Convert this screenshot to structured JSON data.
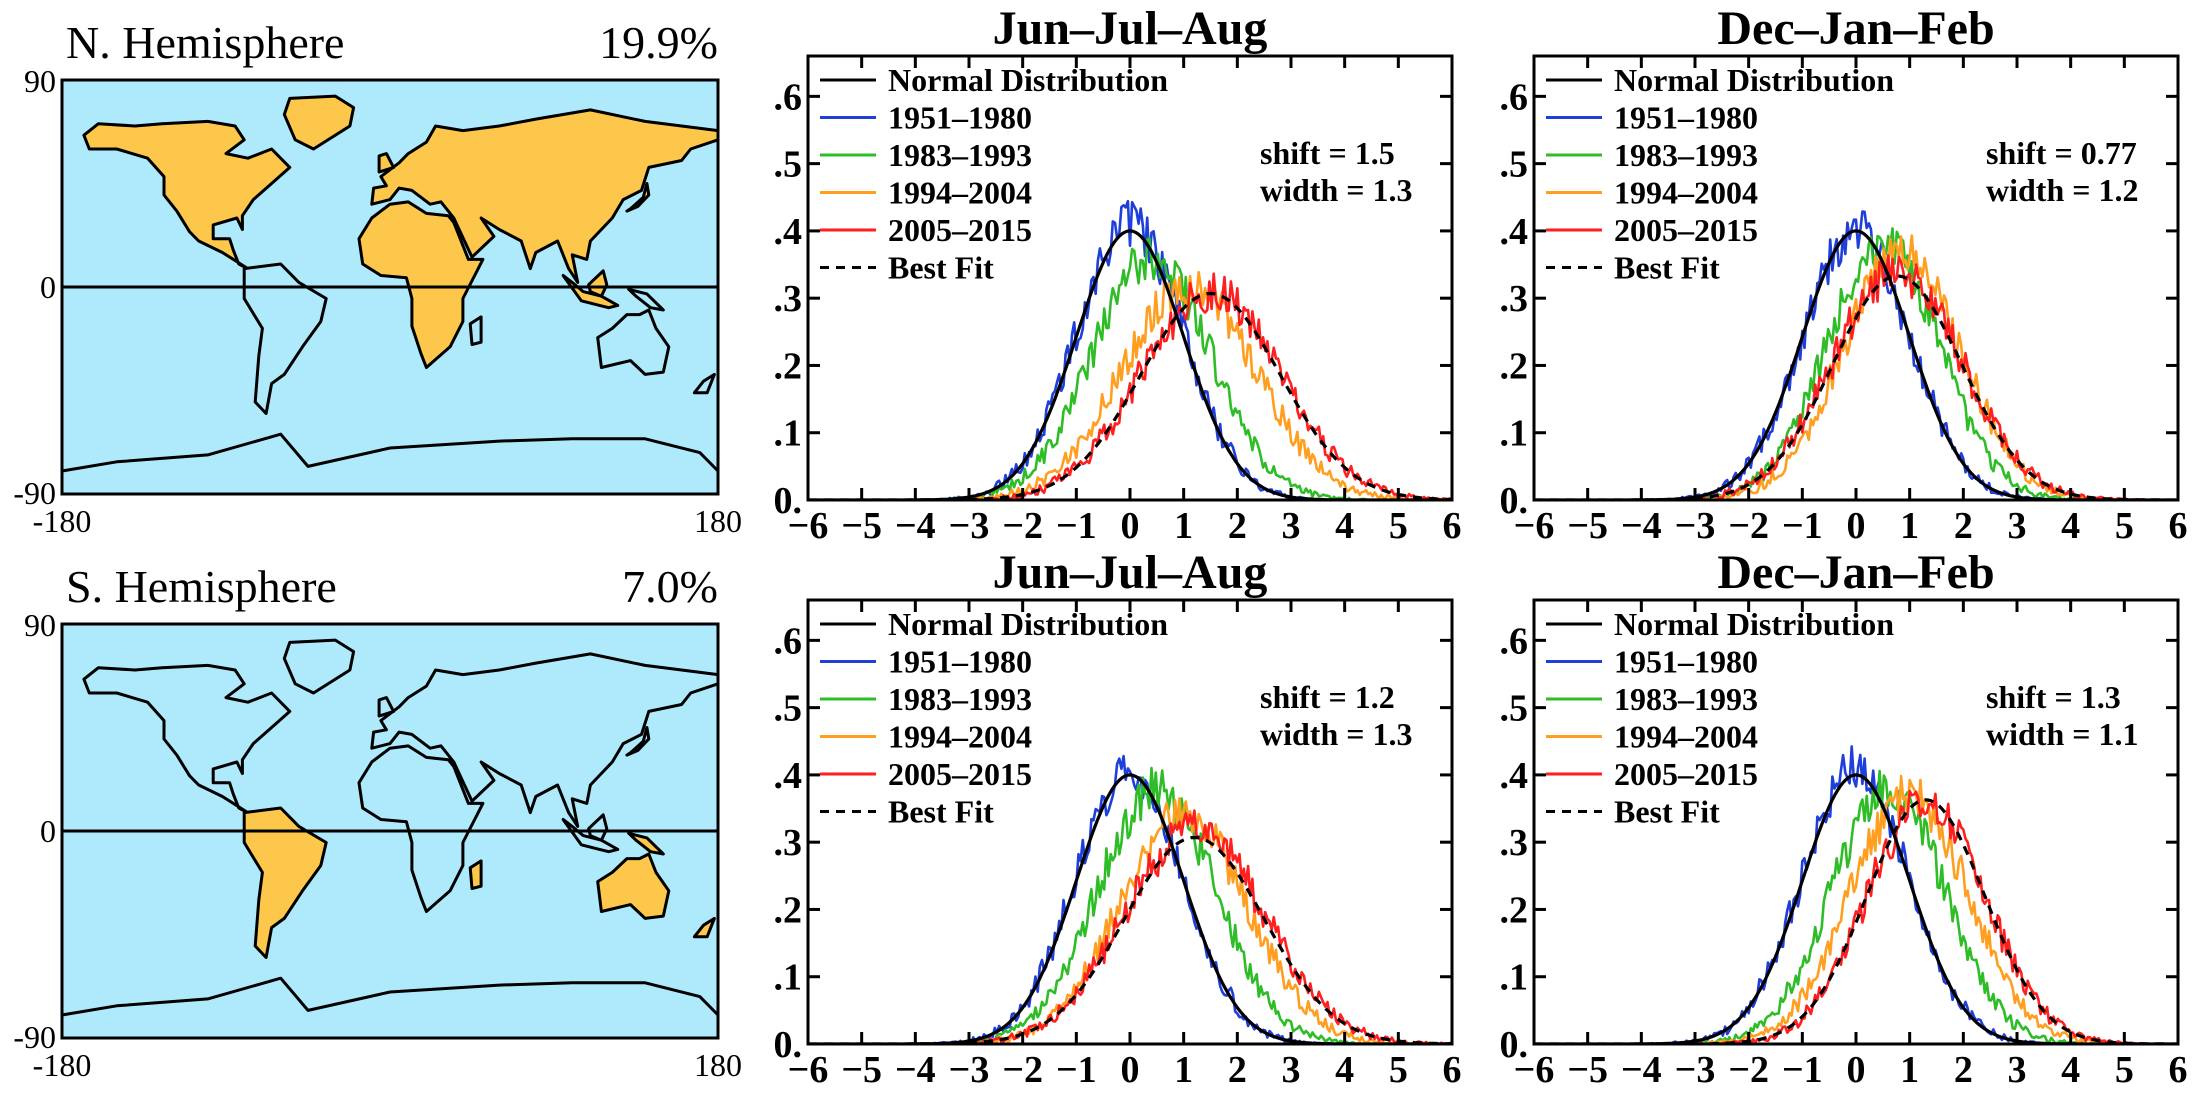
{
  "colors": {
    "ocean": "#aeeafb",
    "land_highlight": "#fcc74b",
    "land_other": "#aeeafb",
    "coast": "#000000",
    "normal": "#000000",
    "p1951": "#1f3fdb",
    "p1983": "#2ebd27",
    "p1994": "#ff9e1f",
    "p2005": "#ff1f1f",
    "bestfit": "#000000"
  },
  "maps": [
    {
      "title": "N. Hemisphere",
      "percent": "19.9%",
      "highlight": "north",
      "lat_ticks": [
        "90",
        "0",
        "-90"
      ],
      "lon_ticks": [
        "-180",
        "180"
      ]
    },
    {
      "title": "S. Hemisphere",
      "percent": "7.0%",
      "highlight": "south",
      "lat_ticks": [
        "90",
        "0",
        "-90"
      ],
      "lon_ticks": [
        "-180",
        "180"
      ]
    }
  ],
  "legend_labels": [
    "Normal Distribution",
    "1951–1980",
    "1983–1993",
    "1994–2004",
    "2005–2015",
    "Best Fit"
  ],
  "chart_data": [
    {
      "type": "line",
      "title": "Jun–Jul–Aug",
      "hemisphere": "N. Hemisphere",
      "xlim": [
        -6,
        6
      ],
      "ylim": [
        0,
        0.66
      ],
      "x_ticks": [
        "−6",
        "−5",
        "−4",
        "−3",
        "−2",
        "−1",
        "0",
        "1",
        "2",
        "3",
        "4",
        "5",
        "6"
      ],
      "y_ticks": [
        "0.",
        ".1",
        ".2",
        ".3",
        ".4",
        ".5",
        ".6"
      ],
      "shift_text": "shift = 1.5",
      "width_text": "width = 1.3",
      "series": [
        {
          "name": "Normal Distribution",
          "mean": 0.0,
          "sd": 1.0,
          "peak": 0.4,
          "style": "solid",
          "color": "normal"
        },
        {
          "name": "1951–1980",
          "mean": 0.0,
          "sd": 1.0,
          "peak": 0.41,
          "style": "noisy",
          "color": "p1951"
        },
        {
          "name": "1983–1993",
          "mean": 0.4,
          "sd": 1.1,
          "peak": 0.36,
          "style": "noisy",
          "color": "p1983"
        },
        {
          "name": "1994–2004",
          "mean": 1.1,
          "sd": 1.25,
          "peak": 0.32,
          "style": "noisy",
          "color": "p1994"
        },
        {
          "name": "2005–2015",
          "mean": 1.5,
          "sd": 1.3,
          "peak": 0.31,
          "style": "noisy",
          "color": "p2005"
        },
        {
          "name": "Best Fit",
          "mean": 1.5,
          "sd": 1.3,
          "peak": 0.307,
          "style": "dashed",
          "color": "bestfit"
        }
      ]
    },
    {
      "type": "line",
      "title": "Dec–Jan–Feb",
      "hemisphere": "N. Hemisphere",
      "xlim": [
        -6,
        6
      ],
      "ylim": [
        0,
        0.66
      ],
      "x_ticks": [
        "−6",
        "−5",
        "−4",
        "−3",
        "−2",
        "−1",
        "0",
        "1",
        "2",
        "3",
        "4",
        "5",
        "6"
      ],
      "y_ticks": [
        "0.",
        ".1",
        ".2",
        ".3",
        ".4",
        ".5",
        ".6"
      ],
      "shift_text": "shift = 0.77",
      "width_text": "width = 1.2",
      "series": [
        {
          "name": "Normal Distribution",
          "mean": 0.0,
          "sd": 1.0,
          "peak": 0.4,
          "style": "solid",
          "color": "normal"
        },
        {
          "name": "1951–1980",
          "mean": 0.0,
          "sd": 1.0,
          "peak": 0.4,
          "style": "noisy",
          "color": "p1951"
        },
        {
          "name": "1983–1993",
          "mean": 0.5,
          "sd": 1.05,
          "peak": 0.38,
          "style": "noisy",
          "color": "p1983"
        },
        {
          "name": "1994–2004",
          "mean": 0.85,
          "sd": 1.1,
          "peak": 0.37,
          "style": "noisy",
          "color": "p1994"
        },
        {
          "name": "2005–2015",
          "mean": 0.77,
          "sd": 1.2,
          "peak": 0.34,
          "style": "noisy",
          "color": "p2005"
        },
        {
          "name": "Best Fit",
          "mean": 0.77,
          "sd": 1.2,
          "peak": 0.333,
          "style": "dashed",
          "color": "bestfit"
        }
      ]
    },
    {
      "type": "line",
      "title": "Jun–Jul–Aug",
      "hemisphere": "S. Hemisphere",
      "xlim": [
        -6,
        6
      ],
      "ylim": [
        0,
        0.66
      ],
      "x_ticks": [
        "−6",
        "−5",
        "−4",
        "−3",
        "−2",
        "−1",
        "0",
        "1",
        "2",
        "3",
        "4",
        "5",
        "6"
      ],
      "y_ticks": [
        "0.",
        ".1",
        ".2",
        ".3",
        ".4",
        ".5",
        ".6"
      ],
      "shift_text": "shift = 1.2",
      "width_text": "width = 1.3",
      "series": [
        {
          "name": "Normal Distribution",
          "mean": 0.0,
          "sd": 1.0,
          "peak": 0.4,
          "style": "solid",
          "color": "normal"
        },
        {
          "name": "1951–1980",
          "mean": 0.0,
          "sd": 1.0,
          "peak": 0.41,
          "style": "noisy",
          "color": "p1951"
        },
        {
          "name": "1983–1993",
          "mean": 0.5,
          "sd": 1.1,
          "peak": 0.38,
          "style": "noisy",
          "color": "p1983"
        },
        {
          "name": "1994–2004",
          "mean": 1.0,
          "sd": 1.2,
          "peak": 0.34,
          "style": "noisy",
          "color": "p1994"
        },
        {
          "name": "2005–2015",
          "mean": 1.2,
          "sd": 1.3,
          "peak": 0.32,
          "style": "noisy",
          "color": "p2005"
        },
        {
          "name": "Best Fit",
          "mean": 1.2,
          "sd": 1.3,
          "peak": 0.307,
          "style": "dashed",
          "color": "bestfit"
        }
      ]
    },
    {
      "type": "line",
      "title": "Dec–Jan–Feb",
      "hemisphere": "S. Hemisphere",
      "xlim": [
        -6,
        6
      ],
      "ylim": [
        0,
        0.66
      ],
      "x_ticks": [
        "−6",
        "−5",
        "−4",
        "−3",
        "−2",
        "−1",
        "0",
        "1",
        "2",
        "3",
        "4",
        "5",
        "6"
      ],
      "y_ticks": [
        "0.",
        ".1",
        ".2",
        ".3",
        ".4",
        ".5",
        ".6"
      ],
      "shift_text": "shift = 1.3",
      "width_text": "width = 1.1",
      "series": [
        {
          "name": "Normal Distribution",
          "mean": 0.0,
          "sd": 1.0,
          "peak": 0.4,
          "style": "solid",
          "color": "normal"
        },
        {
          "name": "1951–1980",
          "mean": 0.0,
          "sd": 1.0,
          "peak": 0.41,
          "style": "noisy",
          "color": "p1951"
        },
        {
          "name": "1983–1993",
          "mean": 0.6,
          "sd": 1.05,
          "peak": 0.38,
          "style": "noisy",
          "color": "p1983"
        },
        {
          "name": "1994–2004",
          "mean": 1.0,
          "sd": 1.1,
          "peak": 0.37,
          "style": "noisy",
          "color": "p1994"
        },
        {
          "name": "2005–2015",
          "mean": 1.3,
          "sd": 1.1,
          "peak": 0.36,
          "style": "noisy",
          "color": "p2005"
        },
        {
          "name": "Best Fit",
          "mean": 1.3,
          "sd": 1.1,
          "peak": 0.363,
          "style": "dashed",
          "color": "bestfit"
        }
      ]
    }
  ]
}
